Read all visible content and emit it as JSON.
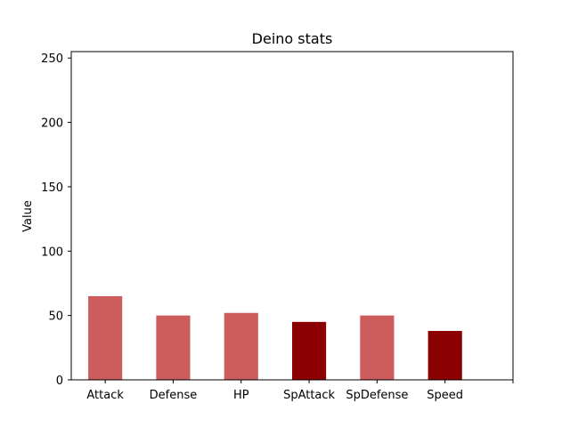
{
  "chart_data": {
    "type": "bar",
    "title": "Deino stats",
    "xlabel": "",
    "ylabel": "Value",
    "categories": [
      "Attack",
      "Defense",
      "HP",
      "SpAttack",
      "SpDefense",
      "Speed"
    ],
    "values": [
      65,
      50,
      52,
      45,
      50,
      38
    ],
    "bar_colors": [
      "#cd5c5c",
      "#cd5c5c",
      "#cd5c5c",
      "#8b0000",
      "#cd5c5c",
      "#8b0000"
    ],
    "ylim": [
      0,
      255
    ],
    "yticks": [
      0,
      50,
      100,
      150,
      200,
      250
    ],
    "grid": false,
    "legend": "none"
  }
}
